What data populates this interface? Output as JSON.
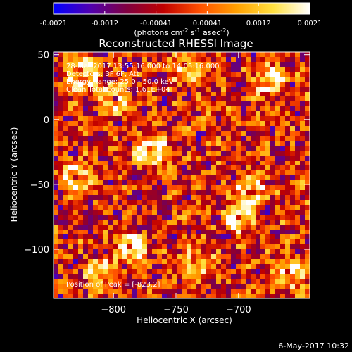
{
  "chart_data": {
    "type": "heatmap",
    "title": "Reconstructed RHESSI Image",
    "xlabel": "Heliocentric X (arcsec)",
    "ylabel": "Heliocentric Y (arcsec)",
    "xlim": [
      -848,
      -643
    ],
    "ylim": [
      -138,
      52
    ],
    "x_ticks": [
      -800,
      -750,
      -700
    ],
    "y_ticks": [
      50,
      0,
      -50,
      -100
    ],
    "colorbar": {
      "ticks": [
        "-0.0021",
        "-0.0012",
        "-0.00041",
        "0.00041",
        "0.0012",
        "0.0021"
      ],
      "range": [
        -0.0021,
        0.0021
      ],
      "label_main": "(photons cm",
      "label_exp1": "-2",
      "label_mid1": " s",
      "label_exp2": "-1",
      "label_mid2": " asec",
      "label_exp3": "-2",
      "label_end": ")",
      "colors": [
        "#0000ff",
        "#5000b0",
        "#800040",
        "#c00000",
        "#ff5000",
        "#ffa000",
        "#ffe040",
        "#ffffff"
      ]
    },
    "annotations": [
      "28-Mar-2017 13:55:16.000 to 14:05:16.000",
      "Detectors: 3F 6F, Att",
      "Energy Range: 25.0 - 50.0 keV",
      "Clean    Total counts: 1.61E+04"
    ],
    "peak_label": "Position of Peak = [-823,2]",
    "hotspots": [
      {
        "x": -770,
        "y": -25,
        "level": 0.95
      },
      {
        "x": -825,
        "y": 35,
        "level": 0.85
      },
      {
        "x": -800,
        "y": 15,
        "level": 0.8
      },
      {
        "x": -785,
        "y": -100,
        "level": 0.85
      },
      {
        "x": -690,
        "y": -55,
        "level": 0.85
      },
      {
        "x": -700,
        "y": -75,
        "level": 0.8
      },
      {
        "x": -830,
        "y": -45,
        "level": 0.75
      },
      {
        "x": -675,
        "y": 30,
        "level": 0.7
      },
      {
        "x": -740,
        "y": 40,
        "level": 0.7
      },
      {
        "x": -810,
        "y": -120,
        "level": 0.7
      },
      {
        "x": -735,
        "y": -110,
        "level": 0.7
      },
      {
        "x": -660,
        "y": -120,
        "level": 0.7
      }
    ]
  },
  "footer": {
    "datetime": "6-May-2017 10:32"
  }
}
